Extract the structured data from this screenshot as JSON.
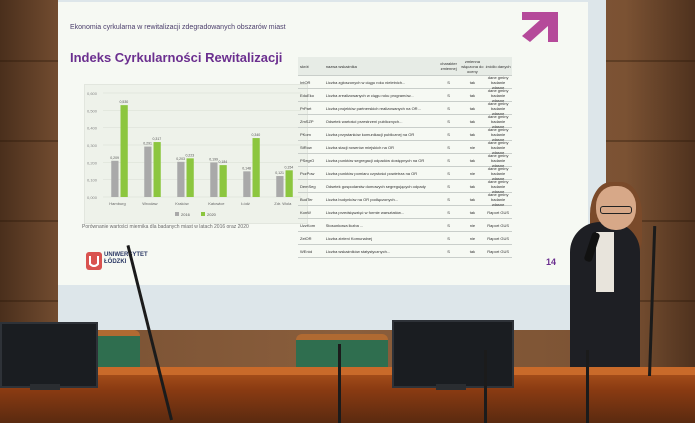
{
  "slide": {
    "header": "Ekonomia cyrkularna w rewitalizacji zdegradowanych obszarów miast",
    "title": "Indeks Cyrkularności Rewitalizacji",
    "page_number": "14",
    "chart_caption": "Porównanie wartości miernika dla badanych miast w latach 2016 oraz 2020",
    "university": [
      "UNIWERSYTET",
      "ŁÓDZKI"
    ],
    "table": {
      "headers": [
        "skrót",
        "nazwa wskaźnika",
        "charakter zmiennej",
        "zmienna włączona do oceny",
        "źródło danych"
      ],
      "rows": [
        [
          "IntOR",
          "Liczba zgłoszonych w ciągu roku nieletnich...",
          "S",
          "tak",
          "dane gminy badanie własne"
        ],
        [
          "EduEko",
          "Liczba zrealizowanych w ciągu roku programów...",
          "S",
          "tak",
          "dane gminy badanie własne"
        ],
        [
          "PrPart",
          "Liczba projektów partnerskich realizowanych na OR...",
          "S",
          "tak",
          "dane gminy badanie własne"
        ],
        [
          "ZmSZP",
          "Odsetek wartości przestrzeni publicznych...",
          "S",
          "tak",
          "dane gminy badanie własne"
        ],
        [
          "PKom",
          "Liczba przystanków komunikacji publicznej na OR",
          "S",
          "tak",
          "dane gminy badanie własne"
        ],
        [
          "StRow",
          "Liczba stacji rowerów miejskich na OR",
          "S",
          "nie",
          "dane gminy badanie własne"
        ],
        [
          "PSegrO",
          "Liczba punktów segregacji odpadów dostępnych na OR",
          "S",
          "tak",
          "dane gminy badanie własne"
        ],
        [
          "PczPow",
          "Liczba punktów pomiaru czystości powietrza na OR",
          "S",
          "nie",
          "dane gminy badanie własne"
        ],
        [
          "DemSeg",
          "Odsetek gospodarstw domowych segregujących odpady",
          "S",
          "tak",
          "dane gminy badanie własne"
        ],
        [
          "BudTer",
          "Liczba budynków na OR podłączonych...",
          "S",
          "tak",
          "dane gminy badanie własne"
        ],
        [
          "KonW",
          "Liczba przedsięwzięć w formie warsztatów...",
          "S",
          "tak",
          "Raport GUS"
        ],
        [
          "UzzKom",
          "Stosunkowa liczba ...",
          "S",
          "nie",
          "Raport GUS"
        ],
        [
          "ZelOR",
          "Liczba zieleni Komunalnej",
          "S",
          "nie",
          "Raport GUS"
        ],
        [
          "WEród",
          "Liczba wskaźników statystycznych...",
          "S",
          "tak",
          "Raport GUS"
        ]
      ]
    }
  },
  "chart_data": {
    "type": "bar",
    "categories": [
      "Hamburg",
      "Wrocław",
      "Kraków",
      "Katowice",
      "Łódź",
      "Zdr. Wola"
    ],
    "series": [
      {
        "name": "2016",
        "values": [
          0.209,
          0.291,
          0.203,
          0.199,
          0.148,
          0.121
        ],
        "color": "#a9a9a9"
      },
      {
        "name": "2020",
        "values": [
          0.53,
          0.317,
          0.223,
          0.184,
          0.34,
          0.154
        ],
        "color": "#8cc63f"
      }
    ],
    "ylim": [
      0,
      0.6
    ],
    "legend": [
      "2016",
      "2020"
    ]
  }
}
